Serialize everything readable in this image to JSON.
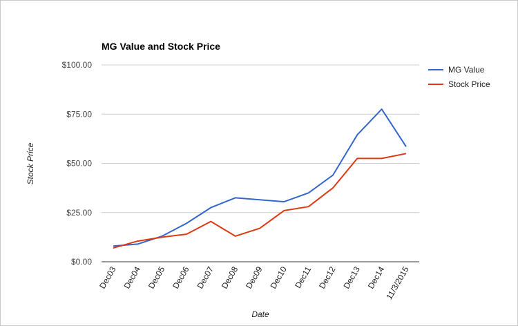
{
  "chart_data": {
    "type": "line",
    "title": "MG Value and Stock Price",
    "xlabel": "Date",
    "ylabel": "Stock Price",
    "categories": [
      "Dec03",
      "Dec04",
      "Dec05",
      "Dec06",
      "Dec07",
      "Dec08",
      "Dec09",
      "Dec10",
      "Dec11",
      "Dec12",
      "Dec13",
      "Dec14",
      "11/3/2015"
    ],
    "ylim": [
      0,
      100
    ],
    "y_ticks": [
      0,
      25,
      50,
      75,
      100
    ],
    "y_tick_labels": [
      "$0.00",
      "$25.00",
      "$50.00",
      "$75.00",
      "$100.00"
    ],
    "grid": true,
    "legend_position": "right",
    "series": [
      {
        "name": "MG Value",
        "color": "#3366cc",
        "values": [
          8.0,
          9.0,
          13.0,
          19.5,
          27.5,
          32.5,
          31.5,
          30.5,
          35.0,
          44.0,
          64.5,
          77.5,
          58.5
        ]
      },
      {
        "name": "Stock Price",
        "color": "#dc3912",
        "values": [
          7.0,
          10.5,
          12.5,
          14.0,
          20.5,
          13.0,
          17.0,
          26.0,
          28.0,
          37.5,
          52.5,
          52.5,
          55.0
        ]
      }
    ]
  }
}
